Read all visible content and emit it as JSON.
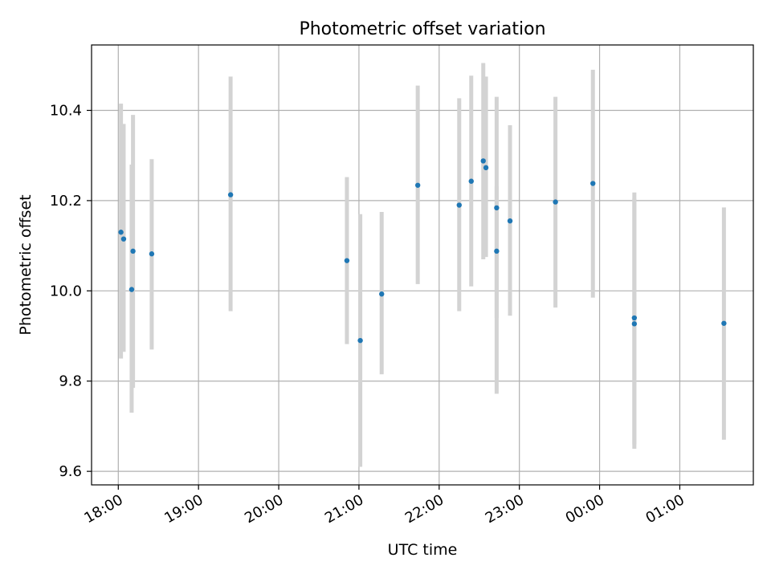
{
  "chart_data": {
    "type": "scatter",
    "title": "Photometric offset variation",
    "xlabel": "UTC time",
    "ylabel": "Photometric offset",
    "x_is_time": true,
    "xlim": [
      "17:40",
      "01:55"
    ],
    "ylim": [
      9.57,
      10.545
    ],
    "x_ticks": [
      "18:00",
      "19:00",
      "20:00",
      "21:00",
      "22:00",
      "23:00",
      "00:00",
      "01:00"
    ],
    "y_ticks": [
      "9.6",
      "9.8",
      "10.0",
      "10.2",
      "10.4"
    ],
    "grid": true,
    "colors": {
      "point": "#1f77b4",
      "errorbar": "#d3d3d3",
      "grid": "#b0b0b0"
    },
    "points": [
      {
        "x": "18:02",
        "y": 10.13,
        "yerr_low": 9.85,
        "yerr_high": 10.415
      },
      {
        "x": "18:04",
        "y": 10.115,
        "yerr_low": 9.865,
        "yerr_high": 10.37
      },
      {
        "x": "18:10",
        "y": 10.003,
        "yerr_low": 9.73,
        "yerr_high": 10.28
      },
      {
        "x": "18:11",
        "y": 10.088,
        "yerr_low": 9.785,
        "yerr_high": 10.39
      },
      {
        "x": "18:25",
        "y": 10.082,
        "yerr_low": 9.87,
        "yerr_high": 10.292
      },
      {
        "x": "19:24",
        "y": 10.213,
        "yerr_low": 9.955,
        "yerr_high": 10.475
      },
      {
        "x": "20:51",
        "y": 10.067,
        "yerr_low": 9.882,
        "yerr_high": 10.252
      },
      {
        "x": "21:01",
        "y": 9.89,
        "yerr_low": 9.61,
        "yerr_high": 10.17
      },
      {
        "x": "21:17",
        "y": 9.993,
        "yerr_low": 9.815,
        "yerr_high": 10.175
      },
      {
        "x": "21:44",
        "y": 10.234,
        "yerr_low": 10.015,
        "yerr_high": 10.455
      },
      {
        "x": "22:15",
        "y": 10.19,
        "yerr_low": 9.955,
        "yerr_high": 10.427
      },
      {
        "x": "22:24",
        "y": 10.243,
        "yerr_low": 10.01,
        "yerr_high": 10.477
      },
      {
        "x": "22:33",
        "y": 10.288,
        "yerr_low": 10.07,
        "yerr_high": 10.505
      },
      {
        "x": "22:35",
        "y": 10.273,
        "yerr_low": 10.075,
        "yerr_high": 10.475
      },
      {
        "x": "22:43",
        "y": 10.088,
        "yerr_low": 9.94,
        "yerr_high": 10.232
      },
      {
        "x": "22:43",
        "y": 10.184,
        "yerr_low": 9.772,
        "yerr_high": 10.43
      },
      {
        "x": "22:53",
        "y": 10.155,
        "yerr_low": 9.945,
        "yerr_high": 10.367
      },
      {
        "x": "23:27",
        "y": 10.197,
        "yerr_low": 9.963,
        "yerr_high": 10.43
      },
      {
        "x": "23:55",
        "y": 10.238,
        "yerr_low": 9.985,
        "yerr_high": 10.49
      },
      {
        "x": "00:26",
        "y": 9.94,
        "yerr_low": 9.66,
        "yerr_high": 10.218
      },
      {
        "x": "00:26",
        "y": 9.927,
        "yerr_low": 9.65,
        "yerr_high": 10.205
      },
      {
        "x": "01:33",
        "y": 9.928,
        "yerr_low": 9.67,
        "yerr_high": 10.185
      }
    ]
  }
}
